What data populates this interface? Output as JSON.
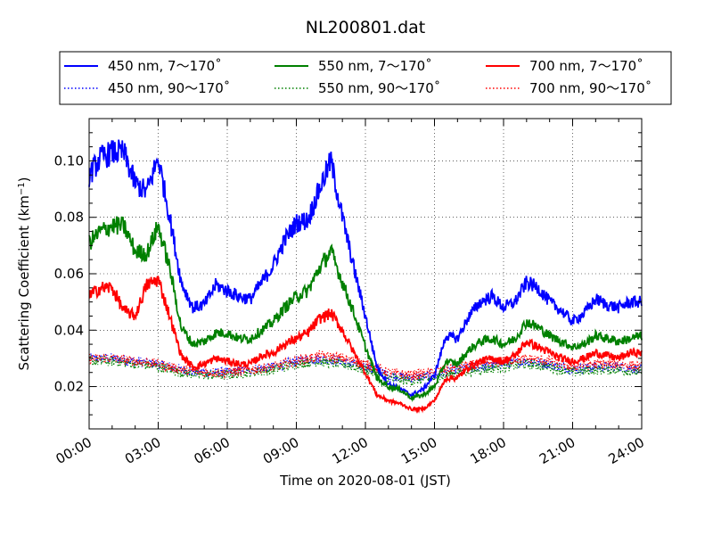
{
  "chart_data": {
    "type": "line",
    "title": "NL200801.dat",
    "xlabel": "Time on 2020-08-01 (JST)",
    "ylabel": "Scattering Coefficient (km",
    "ylabel_sup": "−1",
    "ylabel_close": ")",
    "x_unit": "hours",
    "xlim": [
      0,
      24
    ],
    "ylim": [
      0.005,
      0.115
    ],
    "x_ticks": [
      0,
      3,
      6,
      9,
      12,
      15,
      18,
      21,
      24
    ],
    "x_tick_labels": [
      "00:00",
      "03:00",
      "06:00",
      "09:00",
      "12:00",
      "15:00",
      "18:00",
      "21:00",
      "24:00"
    ],
    "y_ticks": [
      0.02,
      0.04,
      0.06,
      0.08,
      0.1
    ],
    "y_tick_labels": [
      "0.02",
      "0.04",
      "0.06",
      "0.08",
      "0.10"
    ],
    "grid": true,
    "legend_placement": "top, above plot, three columns",
    "series": [
      {
        "name": "450 nm, 7～170˚",
        "color": "#0000ff",
        "style": "solid",
        "x": [
          0,
          0.5,
          1,
          1.5,
          2,
          2.5,
          3,
          3.5,
          4,
          4.5,
          5,
          5.5,
          6,
          6.5,
          7,
          7.5,
          8,
          8.5,
          9,
          9.5,
          10,
          10.5,
          11,
          11.5,
          12,
          12.5,
          13,
          13.5,
          14,
          14.5,
          15,
          15.5,
          16,
          16.5,
          17,
          17.5,
          18,
          18.5,
          19,
          19.5,
          20,
          20.5,
          21,
          21.5,
          22,
          22.5,
          23,
          23.5,
          24
        ],
        "y": [
          0.095,
          0.101,
          0.103,
          0.103,
          0.092,
          0.089,
          0.101,
          0.08,
          0.057,
          0.048,
          0.049,
          0.056,
          0.054,
          0.052,
          0.051,
          0.057,
          0.063,
          0.072,
          0.078,
          0.079,
          0.09,
          0.1,
          0.08,
          0.062,
          0.045,
          0.027,
          0.021,
          0.019,
          0.017,
          0.019,
          0.024,
          0.038,
          0.037,
          0.045,
          0.05,
          0.052,
          0.048,
          0.05,
          0.057,
          0.055,
          0.05,
          0.047,
          0.043,
          0.046,
          0.051,
          0.049,
          0.048,
          0.05,
          0.05
        ]
      },
      {
        "name": "450 nm, 90～170˚",
        "color": "#0000ff",
        "style": "dotted",
        "x": [
          0,
          1,
          2,
          3,
          4,
          5,
          6,
          7,
          8,
          9,
          10,
          11,
          12,
          13,
          14,
          15,
          16,
          17,
          18,
          19,
          20,
          21,
          22,
          23,
          24
        ],
        "y": [
          0.03,
          0.03,
          0.029,
          0.028,
          0.026,
          0.025,
          0.025,
          0.026,
          0.027,
          0.029,
          0.03,
          0.029,
          0.027,
          0.024,
          0.023,
          0.024,
          0.026,
          0.027,
          0.028,
          0.029,
          0.028,
          0.026,
          0.027,
          0.027,
          0.026
        ]
      },
      {
        "name": "550 nm, 7～170˚",
        "color": "#008000",
        "style": "solid",
        "x": [
          0,
          0.5,
          1,
          1.5,
          2,
          2.5,
          3,
          3.5,
          4,
          4.5,
          5,
          5.5,
          6,
          6.5,
          7,
          7.5,
          8,
          8.5,
          9,
          9.5,
          10,
          10.5,
          11,
          11.5,
          12,
          12.5,
          13,
          13.5,
          14,
          14.5,
          15,
          15.5,
          16,
          16.5,
          17,
          17.5,
          18,
          18.5,
          19,
          19.5,
          20,
          20.5,
          21,
          21.5,
          22,
          22.5,
          23,
          23.5,
          24
        ],
        "y": [
          0.071,
          0.075,
          0.077,
          0.077,
          0.068,
          0.067,
          0.077,
          0.062,
          0.041,
          0.035,
          0.036,
          0.039,
          0.039,
          0.037,
          0.037,
          0.04,
          0.043,
          0.048,
          0.052,
          0.054,
          0.062,
          0.068,
          0.057,
          0.046,
          0.034,
          0.023,
          0.02,
          0.019,
          0.016,
          0.017,
          0.02,
          0.029,
          0.028,
          0.033,
          0.036,
          0.037,
          0.035,
          0.037,
          0.043,
          0.041,
          0.038,
          0.036,
          0.034,
          0.035,
          0.038,
          0.037,
          0.036,
          0.037,
          0.038
        ]
      },
      {
        "name": "550 nm, 90～170˚",
        "color": "#008000",
        "style": "dotted",
        "x": [
          0,
          1,
          2,
          3,
          4,
          5,
          6,
          7,
          8,
          9,
          10,
          11,
          12,
          13,
          14,
          15,
          16,
          17,
          18,
          19,
          20,
          21,
          22,
          23,
          24
        ],
        "y": [
          0.029,
          0.029,
          0.028,
          0.027,
          0.025,
          0.024,
          0.024,
          0.025,
          0.026,
          0.028,
          0.029,
          0.028,
          0.026,
          0.023,
          0.022,
          0.023,
          0.025,
          0.026,
          0.027,
          0.028,
          0.027,
          0.025,
          0.026,
          0.026,
          0.025
        ]
      },
      {
        "name": "700 nm, 7～170˚",
        "color": "#ff0000",
        "style": "solid",
        "x": [
          0,
          0.5,
          1,
          1.5,
          2,
          2.5,
          3,
          3.5,
          4,
          4.5,
          5,
          5.5,
          6,
          6.5,
          7,
          7.5,
          8,
          8.5,
          9,
          9.5,
          10,
          10.5,
          11,
          11.5,
          12,
          12.5,
          13,
          13.5,
          14,
          14.5,
          15,
          15.5,
          16,
          16.5,
          17,
          17.5,
          18,
          18.5,
          19,
          19.5,
          20,
          20.5,
          21,
          21.5,
          22,
          22.5,
          23,
          23.5,
          24
        ],
        "y": [
          0.052,
          0.055,
          0.055,
          0.047,
          0.045,
          0.056,
          0.058,
          0.045,
          0.031,
          0.027,
          0.028,
          0.03,
          0.029,
          0.028,
          0.028,
          0.031,
          0.032,
          0.035,
          0.037,
          0.039,
          0.044,
          0.046,
          0.04,
          0.032,
          0.025,
          0.017,
          0.015,
          0.014,
          0.012,
          0.012,
          0.015,
          0.023,
          0.023,
          0.027,
          0.029,
          0.03,
          0.029,
          0.031,
          0.036,
          0.034,
          0.032,
          0.03,
          0.029,
          0.03,
          0.032,
          0.031,
          0.03,
          0.032,
          0.032
        ]
      },
      {
        "name": "700 nm, 90～170˚",
        "color": "#ff0000",
        "style": "dotted",
        "x": [
          0,
          1,
          2,
          3,
          4,
          5,
          6,
          7,
          8,
          9,
          10,
          11,
          12,
          13,
          14,
          15,
          16,
          17,
          18,
          19,
          20,
          21,
          22,
          23,
          24
        ],
        "y": [
          0.03,
          0.03,
          0.029,
          0.028,
          0.026,
          0.025,
          0.025,
          0.026,
          0.027,
          0.029,
          0.031,
          0.03,
          0.028,
          0.025,
          0.024,
          0.025,
          0.027,
          0.028,
          0.029,
          0.03,
          0.029,
          0.027,
          0.028,
          0.028,
          0.027
        ]
      }
    ]
  }
}
